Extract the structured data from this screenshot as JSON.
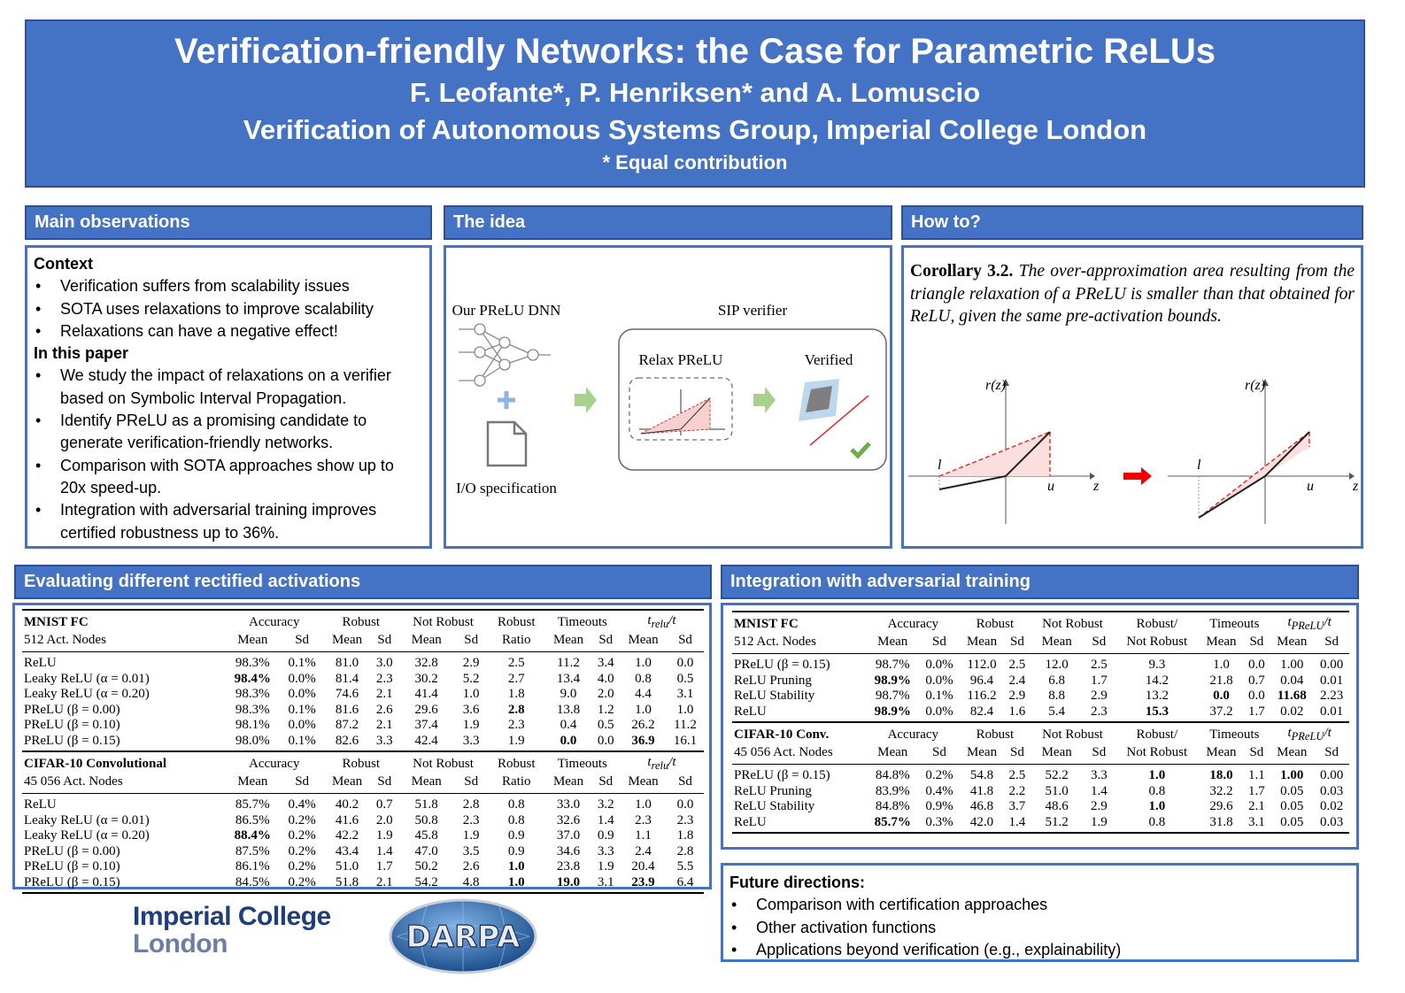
{
  "header": {
    "title": "Verification-friendly Networks: the Case for Parametric ReLUs",
    "authors": "F. Leofante*, P. Henriksen* and A. Lomuscio",
    "affiliation": "Verification of Autonomous Systems Group, Imperial College London",
    "note": "* Equal contribution"
  },
  "main_observations": {
    "title": "Main observations",
    "context_heading": "Context",
    "context_items": [
      "Verification suffers from scalability issues",
      "SOTA uses relaxations to improve scalability",
      "Relaxations can have a negative effect!"
    ],
    "paper_heading": "In this paper",
    "paper_items": [
      "We study the impact of relaxations on a verifier based on Symbolic Interval Propagation.",
      "Identify PReLU as a promising candidate to generate verification-friendly networks.",
      "Comparison with SOTA approaches show up to 20x speed-up.",
      "Integration with adversarial training improves certified robustness up to 36%."
    ]
  },
  "idea": {
    "title": "The idea",
    "dnn_label": "Our PReLU DNN",
    "verifier_label": "SIP verifier",
    "relax_label": "Relax PReLU",
    "verified_label": "Verified",
    "io_label": "I/O specification"
  },
  "how_to": {
    "title": "How to?",
    "corollary_label": "Corollary 3.2.",
    "corollary_text": "The over-approximation area resulting from the triangle relaxation of a PReLU is smaller than that obtained for ReLU, given the same pre-activation bounds.",
    "y_axis_label": "r(z)",
    "x_axis_label": "z",
    "lower_bound_label": "l",
    "upper_bound_label": "u"
  },
  "eval_table": {
    "title": "Evaluating different rectified activations",
    "columns": [
      {
        "label": "Accuracy",
        "sub": [
          "Mean",
          "Sd"
        ]
      },
      {
        "label": "Robust",
        "sub": [
          "Mean",
          "Sd"
        ]
      },
      {
        "label": "Not Robust",
        "sub": [
          "Mean",
          "Sd"
        ]
      },
      {
        "label": "Robust",
        "sub": [
          "Ratio"
        ]
      },
      {
        "label": "Timeouts",
        "sub": [
          "Mean",
          "Sd"
        ]
      },
      {
        "label": "t",
        "label_sub": "relu",
        "label_tail": "/t",
        "sub": [
          "Mean",
          "Sd"
        ]
      }
    ],
    "sections": [
      {
        "name": "MNIST FC",
        "subname": "512 Act. Nodes",
        "rows": [
          {
            "name": "ReLU",
            "cells": [
              "98.3%",
              "0.1%",
              "81.0",
              "3.0",
              "32.8",
              "2.9",
              "2.5",
              "11.2",
              "3.4",
              "1.0",
              "0.0"
            ],
            "bold": []
          },
          {
            "name": "Leaky ReLU (α = 0.01)",
            "cells": [
              "98.4%",
              "0.0%",
              "81.4",
              "2.3",
              "30.2",
              "5.2",
              "2.7",
              "13.4",
              "4.0",
              "0.8",
              "0.5"
            ],
            "bold": [
              0
            ]
          },
          {
            "name": "Leaky ReLU (α = 0.20)",
            "cells": [
              "98.3%",
              "0.0%",
              "74.6",
              "2.1",
              "41.4",
              "1.0",
              "1.8",
              "9.0",
              "2.0",
              "4.4",
              "3.1"
            ],
            "bold": []
          },
          {
            "name": "PReLU (β = 0.00)",
            "cells": [
              "98.3%",
              "0.1%",
              "81.6",
              "2.6",
              "29.6",
              "3.6",
              "2.8",
              "13.8",
              "1.2",
              "1.0",
              "1.0"
            ],
            "bold": [
              6
            ]
          },
          {
            "name": "PReLU (β = 0.10)",
            "cells": [
              "98.1%",
              "0.0%",
              "87.2",
              "2.1",
              "37.4",
              "1.9",
              "2.3",
              "0.4",
              "0.5",
              "26.2",
              "11.2"
            ],
            "bold": []
          },
          {
            "name": "PReLU (β = 0.15)",
            "cells": [
              "98.0%",
              "0.1%",
              "82.6",
              "3.3",
              "42.4",
              "3.3",
              "1.9",
              "0.0",
              "0.0",
              "36.9",
              "16.1"
            ],
            "bold": [
              7,
              9
            ]
          }
        ]
      },
      {
        "name": "CIFAR-10 Convolutional",
        "subname": "45 056 Act. Nodes",
        "rows": [
          {
            "name": "ReLU",
            "cells": [
              "85.7%",
              "0.4%",
              "40.2",
              "0.7",
              "51.8",
              "2.8",
              "0.8",
              "33.0",
              "3.2",
              "1.0",
              "0.0"
            ],
            "bold": []
          },
          {
            "name": "Leaky ReLU (α = 0.01)",
            "cells": [
              "86.5%",
              "0.2%",
              "41.6",
              "2.0",
              "50.8",
              "2.3",
              "0.8",
              "32.6",
              "1.4",
              "2.3",
              "2.3"
            ],
            "bold": []
          },
          {
            "name": "Leaky ReLU (α = 0.20)",
            "cells": [
              "88.4%",
              "0.2%",
              "42.2",
              "1.9",
              "45.8",
              "1.9",
              "0.9",
              "37.0",
              "0.9",
              "1.1",
              "1.8"
            ],
            "bold": [
              0
            ]
          },
          {
            "name": "PReLU (β = 0.00)",
            "cells": [
              "87.5%",
              "0.2%",
              "43.4",
              "1.4",
              "47.0",
              "3.5",
              "0.9",
              "34.6",
              "3.3",
              "2.4",
              "2.8"
            ],
            "bold": []
          },
          {
            "name": "PReLU (β = 0.10)",
            "cells": [
              "86.1%",
              "0.2%",
              "51.0",
              "1.7",
              "50.2",
              "2.6",
              "1.0",
              "23.8",
              "1.9",
              "20.4",
              "5.5"
            ],
            "bold": [
              6
            ]
          },
          {
            "name": "PReLU (β = 0.15)",
            "cells": [
              "84.5%",
              "0.2%",
              "51.8",
              "2.1",
              "54.2",
              "4.8",
              "1.0",
              "19.0",
              "3.1",
              "23.9",
              "6.4"
            ],
            "bold": [
              6,
              7,
              9
            ]
          }
        ]
      }
    ]
  },
  "adv_table": {
    "title": "Integration with adversarial training",
    "columns": [
      {
        "label": "Accuracy",
        "sub": [
          "Mean",
          "Sd"
        ]
      },
      {
        "label": "Robust",
        "sub": [
          "Mean",
          "Sd"
        ]
      },
      {
        "label": "Not Robust",
        "sub": [
          "Mean",
          "Sd"
        ]
      },
      {
        "label": "Robust/",
        "sub": [
          "Not Robust"
        ]
      },
      {
        "label": "Timeouts",
        "sub": [
          "Mean",
          "Sd"
        ]
      },
      {
        "label": "t",
        "label_sub": "PReLU",
        "label_tail": "/t",
        "sub": [
          "Mean",
          "Sd"
        ]
      }
    ],
    "sections": [
      {
        "name": "MNIST FC",
        "subname": "512 Act. Nodes",
        "rows": [
          {
            "name": "PReLU (β = 0.15)",
            "cells": [
              "98.7%",
              "0.0%",
              "112.0",
              "2.5",
              "12.0",
              "2.5",
              "9.3",
              "1.0",
              "0.0",
              "1.00",
              "0.00"
            ],
            "bold": []
          },
          {
            "name": "ReLU Pruning",
            "cells": [
              "98.9%",
              "0.0%",
              "96.4",
              "2.4",
              "6.8",
              "1.7",
              "14.2",
              "21.8",
              "0.7",
              "0.04",
              "0.01"
            ],
            "bold": [
              0
            ]
          },
          {
            "name": "ReLU Stability",
            "cells": [
              "98.7%",
              "0.1%",
              "116.2",
              "2.9",
              "8.8",
              "2.9",
              "13.2",
              "0.0",
              "0.0",
              "11.68",
              "2.23"
            ],
            "bold": [
              7,
              9
            ]
          },
          {
            "name": "ReLU",
            "cells": [
              "98.9%",
              "0.0%",
              "82.4",
              "1.6",
              "5.4",
              "2.3",
              "15.3",
              "37.2",
              "1.7",
              "0.02",
              "0.01"
            ],
            "bold": [
              0,
              6
            ]
          }
        ]
      },
      {
        "name": "CIFAR-10 Conv.",
        "subname": "45 056 Act. Nodes",
        "rows": [
          {
            "name": "PReLU (β = 0.15)",
            "cells": [
              "84.8%",
              "0.2%",
              "54.8",
              "2.5",
              "52.2",
              "3.3",
              "1.0",
              "18.0",
              "1.1",
              "1.00",
              "0.00"
            ],
            "bold": [
              6,
              7,
              9
            ]
          },
          {
            "name": "ReLU Pruning",
            "cells": [
              "83.9%",
              "0.4%",
              "41.8",
              "2.2",
              "51.0",
              "1.4",
              "0.8",
              "32.2",
              "1.7",
              "0.05",
              "0.03"
            ],
            "bold": []
          },
          {
            "name": "ReLU Stability",
            "cells": [
              "84.8%",
              "0.9%",
              "46.8",
              "3.7",
              "48.6",
              "2.9",
              "1.0",
              "29.6",
              "2.1",
              "0.05",
              "0.02"
            ],
            "bold": [
              6
            ]
          },
          {
            "name": "ReLU",
            "cells": [
              "85.7%",
              "0.3%",
              "42.0",
              "1.4",
              "51.2",
              "1.9",
              "0.8",
              "31.8",
              "3.1",
              "0.05",
              "0.03"
            ],
            "bold": [
              0
            ]
          }
        ]
      }
    ]
  },
  "future": {
    "heading": "Future directions:",
    "items": [
      "Comparison with certification approaches",
      "Other activation functions",
      "Applications beyond verification (e.g., explainability)"
    ]
  },
  "logos": {
    "imperial_line1": "Imperial College",
    "imperial_line2": "London",
    "darpa": "DARPA"
  }
}
